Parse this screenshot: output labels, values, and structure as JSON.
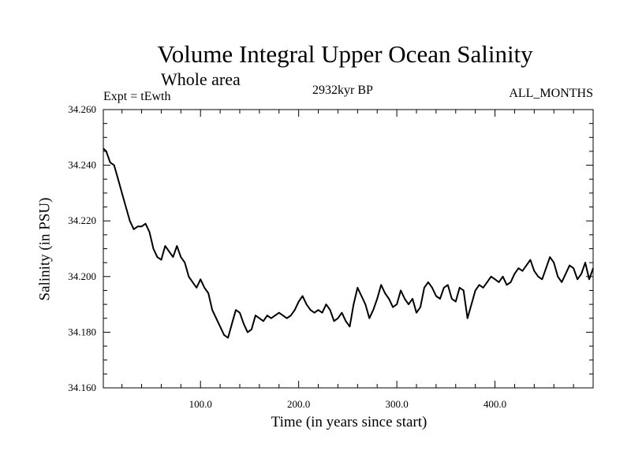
{
  "chart_data": {
    "type": "line",
    "title": "Volume Integral Upper Ocean Salinity",
    "subtitle": "Whole area",
    "left_label": "Expt = tEwth",
    "center_label": "2932kyr BP",
    "right_label": "ALL_MONTHS",
    "xlabel": "Time (in years since start)",
    "ylabel": "Salinity (in PSU)",
    "xlim": [
      1,
      500
    ],
    "ylim": [
      34.16,
      34.26
    ],
    "x_ticks": [
      100,
      200,
      300,
      400
    ],
    "x_tick_labels": [
      "100.0",
      "200.0",
      "300.0",
      "400.0"
    ],
    "y_ticks": [
      34.16,
      34.18,
      34.2,
      34.22,
      34.24,
      34.26
    ],
    "y_tick_labels": [
      "34.160",
      "34.180",
      "34.200",
      "34.220",
      "34.240",
      "34.260"
    ],
    "series": [
      {
        "name": "Salinity",
        "x": [
          1,
          4,
          8,
          12,
          16,
          20,
          24,
          28,
          32,
          36,
          40,
          44,
          48,
          52,
          56,
          60,
          64,
          68,
          72,
          76,
          80,
          84,
          88,
          92,
          96,
          100,
          104,
          108,
          112,
          116,
          120,
          124,
          128,
          132,
          136,
          140,
          144,
          148,
          152,
          156,
          160,
          164,
          168,
          172,
          176,
          180,
          184,
          188,
          192,
          196,
          200,
          204,
          208,
          212,
          216,
          220,
          224,
          228,
          232,
          236,
          240,
          244,
          248,
          252,
          256,
          260,
          264,
          268,
          272,
          276,
          280,
          284,
          288,
          292,
          296,
          300,
          304,
          308,
          312,
          316,
          320,
          324,
          328,
          332,
          336,
          340,
          344,
          348,
          352,
          356,
          360,
          364,
          368,
          372,
          376,
          380,
          384,
          388,
          392,
          396,
          400,
          404,
          408,
          412,
          416,
          420,
          424,
          428,
          432,
          436,
          440,
          444,
          448,
          452,
          456,
          460,
          464,
          468,
          472,
          476,
          480,
          484,
          488,
          492,
          496,
          500
        ],
        "y": [
          34.246,
          34.245,
          34.241,
          34.24,
          34.235,
          34.23,
          34.225,
          34.22,
          34.217,
          34.218,
          34.218,
          34.219,
          34.216,
          34.21,
          34.207,
          34.206,
          34.211,
          34.209,
          34.207,
          34.211,
          34.207,
          34.205,
          34.2,
          34.198,
          34.196,
          34.199,
          34.196,
          34.194,
          34.188,
          34.185,
          34.182,
          34.179,
          34.178,
          34.183,
          34.188,
          34.187,
          34.183,
          34.18,
          34.181,
          34.186,
          34.185,
          34.184,
          34.186,
          34.185,
          34.186,
          34.187,
          34.186,
          34.185,
          34.186,
          34.188,
          34.191,
          34.193,
          34.19,
          34.188,
          34.187,
          34.188,
          34.187,
          34.19,
          34.188,
          34.184,
          34.185,
          34.187,
          34.184,
          34.182,
          34.19,
          34.196,
          34.193,
          34.19,
          34.185,
          34.188,
          34.192,
          34.197,
          34.194,
          34.192,
          34.189,
          34.19,
          34.195,
          34.192,
          34.19,
          34.192,
          34.187,
          34.189,
          34.196,
          34.198,
          34.196,
          34.193,
          34.192,
          34.196,
          34.197,
          34.192,
          34.191,
          34.196,
          34.195,
          34.185,
          34.19,
          34.195,
          34.197,
          34.196,
          34.198,
          34.2,
          34.199,
          34.198,
          34.2,
          34.197,
          34.198,
          34.201,
          34.203,
          34.202,
          34.204,
          34.206,
          34.202,
          34.2,
          34.199,
          34.203,
          34.207,
          34.205,
          34.2,
          34.198,
          34.201,
          34.204,
          34.203,
          34.199,
          34.201,
          34.205,
          34.199,
          34.203
        ]
      }
    ]
  }
}
